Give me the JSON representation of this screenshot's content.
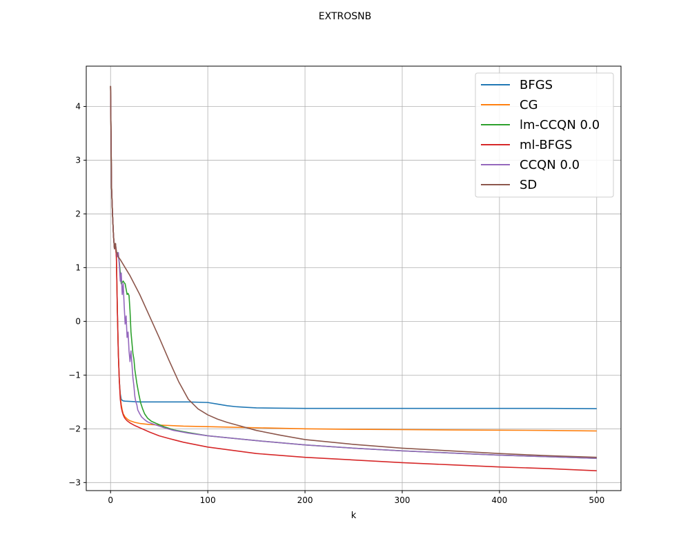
{
  "chart_data": {
    "type": "line",
    "title": "EXTROSNB",
    "xlabel": "k",
    "ylabel": "",
    "xlim": [
      -25,
      525
    ],
    "ylim": [
      -3.15,
      4.75
    ],
    "xticks": [
      0,
      100,
      200,
      300,
      400,
      500
    ],
    "yticks": [
      -3,
      -2,
      -1,
      0,
      1,
      2,
      3,
      4
    ],
    "xtick_labels": [
      "0",
      "100",
      "200",
      "300",
      "400",
      "500"
    ],
    "ytick_labels": [
      "−3",
      "−2",
      "−1",
      "0",
      "1",
      "2",
      "3",
      "4"
    ],
    "grid": true,
    "legend_position": "top-right",
    "series": [
      {
        "name": "BFGS",
        "color": "#1f77b4",
        "x": [
          0,
          1,
          2,
          3,
          4,
          5,
          6,
          7,
          8,
          9,
          10,
          11,
          12,
          13,
          15,
          20,
          30,
          50,
          80,
          100,
          110,
          120,
          130,
          140,
          150,
          170,
          200,
          250,
          300,
          350,
          400,
          450,
          500
        ],
        "y": [
          4.38,
          2.5,
          2.0,
          1.6,
          1.35,
          1.45,
          1.2,
          0.2,
          -0.6,
          -1.1,
          -1.35,
          -1.45,
          -1.47,
          -1.48,
          -1.485,
          -1.49,
          -1.5,
          -1.5,
          -1.5,
          -1.51,
          -1.54,
          -1.57,
          -1.59,
          -1.6,
          -1.61,
          -1.615,
          -1.62,
          -1.62,
          -1.62,
          -1.62,
          -1.62,
          -1.62,
          -1.625
        ]
      },
      {
        "name": "CG",
        "color": "#ff7f0e",
        "x": [
          0,
          1,
          2,
          3,
          4,
          5,
          6,
          7,
          8,
          9,
          10,
          11,
          12,
          13,
          15,
          18,
          20,
          25,
          30,
          40,
          50,
          75,
          100,
          150,
          200,
          250,
          300,
          350,
          400,
          450,
          500
        ],
        "y": [
          4.38,
          2.5,
          2.0,
          1.6,
          1.35,
          1.45,
          1.2,
          0.2,
          -0.6,
          -1.1,
          -1.4,
          -1.55,
          -1.65,
          -1.72,
          -1.78,
          -1.83,
          -1.85,
          -1.88,
          -1.9,
          -1.92,
          -1.93,
          -1.95,
          -1.96,
          -1.98,
          -2.0,
          -2.01,
          -2.015,
          -2.02,
          -2.025,
          -2.03,
          -2.04
        ]
      },
      {
        "name": "lm-CCQN 0.0",
        "color": "#2ca02c",
        "x": [
          0,
          1,
          2,
          3,
          4,
          5,
          6,
          7,
          8,
          9,
          10,
          11,
          12,
          13,
          14,
          15,
          16,
          17,
          18,
          19,
          20,
          21,
          22,
          23,
          24,
          25,
          27,
          29,
          31,
          33,
          35,
          38,
          42,
          47,
          55,
          65,
          80,
          100,
          150,
          200,
          250,
          300,
          350,
          400,
          450,
          500
        ],
        "y": [
          4.38,
          2.5,
          2.0,
          1.6,
          1.35,
          1.45,
          1.25,
          1.28,
          1.22,
          1.1,
          0.9,
          0.7,
          0.72,
          0.75,
          0.72,
          0.7,
          0.6,
          0.5,
          0.52,
          0.48,
          0.2,
          -0.2,
          -0.4,
          -0.6,
          -0.7,
          -0.9,
          -1.15,
          -1.35,
          -1.52,
          -1.63,
          -1.72,
          -1.8,
          -1.86,
          -1.9,
          -1.96,
          -2.02,
          -2.07,
          -2.13,
          -2.22,
          -2.3,
          -2.36,
          -2.41,
          -2.45,
          -2.49,
          -2.52,
          -2.55
        ]
      },
      {
        "name": "ml-BFGS",
        "color": "#d62728",
        "x": [
          0,
          1,
          2,
          3,
          4,
          5,
          6,
          7,
          8,
          9,
          10,
          11,
          12,
          13,
          14,
          15,
          17,
          20,
          25,
          30,
          40,
          50,
          60,
          75,
          100,
          150,
          200,
          250,
          300,
          350,
          400,
          450,
          500
        ],
        "y": [
          4.38,
          2.5,
          2.0,
          1.6,
          1.35,
          1.45,
          1.2,
          0.2,
          -0.6,
          -1.1,
          -1.45,
          -1.6,
          -1.68,
          -1.74,
          -1.78,
          -1.81,
          -1.85,
          -1.89,
          -1.94,
          -1.98,
          -2.06,
          -2.13,
          -2.18,
          -2.25,
          -2.34,
          -2.46,
          -2.53,
          -2.58,
          -2.63,
          -2.67,
          -2.71,
          -2.74,
          -2.78
        ]
      },
      {
        "name": "CCQN 0.0",
        "color": "#9467bd",
        "x": [
          0,
          1,
          2,
          3,
          4,
          5,
          6,
          7,
          8,
          9,
          10,
          11,
          12,
          13,
          14,
          15,
          16,
          17,
          18,
          19,
          20,
          21,
          22,
          23,
          24,
          25,
          26,
          27,
          28,
          30,
          32,
          35,
          38,
          42,
          47,
          55,
          65,
          80,
          100,
          150,
          200,
          250,
          300,
          350,
          400,
          450,
          500
        ],
        "y": [
          4.38,
          2.5,
          2.0,
          1.6,
          1.35,
          1.45,
          1.3,
          1.2,
          1.28,
          1.05,
          0.75,
          0.9,
          0.5,
          0.7,
          0.3,
          -0.05,
          0.1,
          -0.3,
          -0.2,
          -0.55,
          -0.75,
          -0.55,
          -0.8,
          -1.05,
          -1.2,
          -1.4,
          -1.5,
          -1.55,
          -1.65,
          -1.72,
          -1.78,
          -1.83,
          -1.87,
          -1.9,
          -1.93,
          -1.98,
          -2.03,
          -2.08,
          -2.13,
          -2.22,
          -2.3,
          -2.36,
          -2.41,
          -2.45,
          -2.49,
          -2.52,
          -2.55
        ]
      },
      {
        "name": "SD",
        "color": "#8c564b",
        "x": [
          0,
          1,
          2,
          3,
          4,
          5,
          6,
          7,
          8,
          10,
          15,
          20,
          30,
          40,
          50,
          60,
          70,
          80,
          90,
          100,
          110,
          120,
          130,
          150,
          175,
          200,
          250,
          300,
          350,
          400,
          450,
          500
        ],
        "y": [
          4.38,
          2.5,
          2.0,
          1.6,
          1.35,
          1.45,
          1.3,
          1.25,
          1.2,
          1.15,
          1.0,
          0.85,
          0.5,
          0.1,
          -0.3,
          -0.72,
          -1.12,
          -1.45,
          -1.63,
          -1.74,
          -1.82,
          -1.88,
          -1.93,
          -2.03,
          -2.12,
          -2.2,
          -2.29,
          -2.36,
          -2.41,
          -2.46,
          -2.5,
          -2.53
        ]
      }
    ]
  }
}
